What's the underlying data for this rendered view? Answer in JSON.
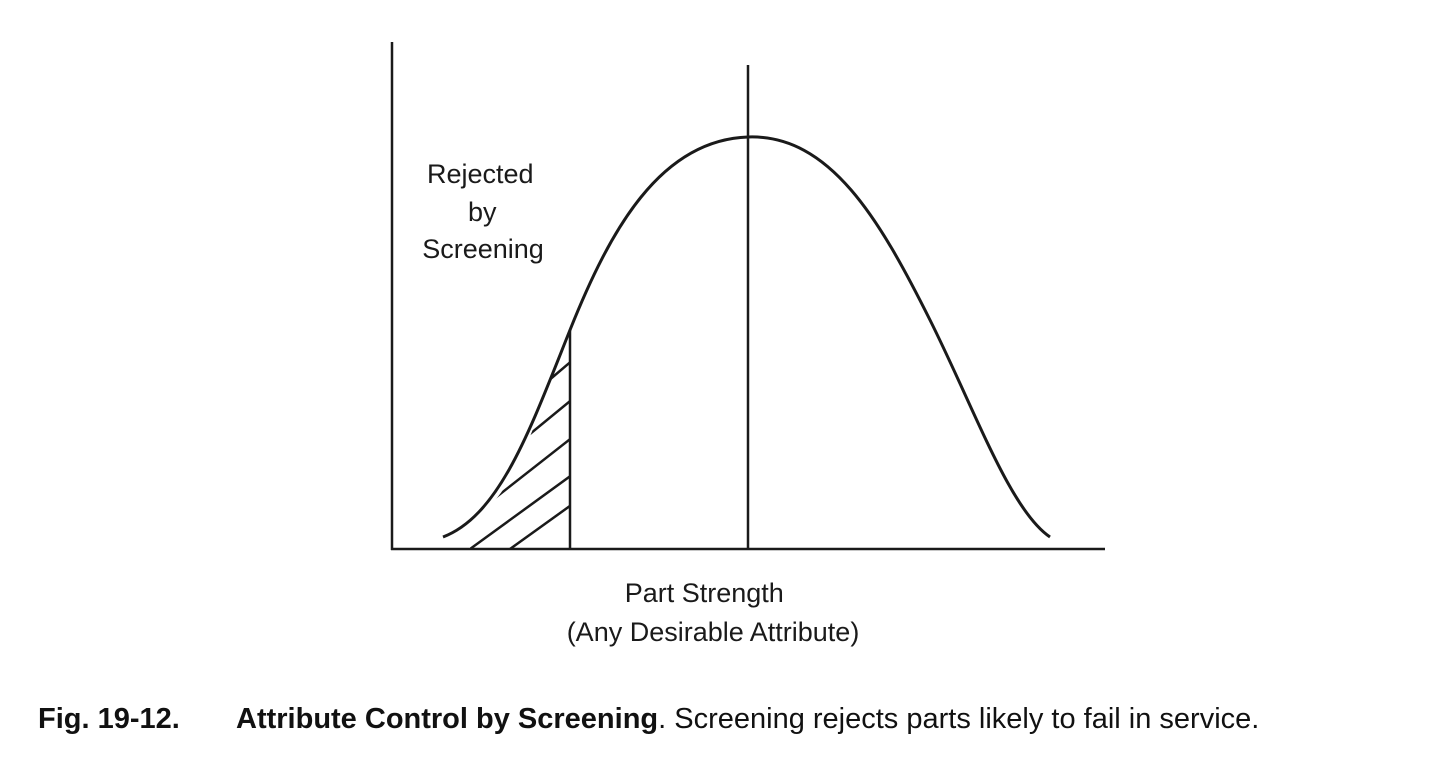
{
  "diagram": {
    "rejected_label_lines": [
      "Rejected",
      "by",
      "Screening"
    ],
    "axis_label_lines": [
      "Part Strength",
      "(Any Desirable Attribute)"
    ]
  },
  "caption": {
    "number": "Fig. 19-12.",
    "title": "Attribute Control by Screening",
    "text": ". Screening rejects parts likely to fail in service."
  },
  "colors": {
    "ink": "#1a1a1a",
    "background": "#ffffff"
  }
}
